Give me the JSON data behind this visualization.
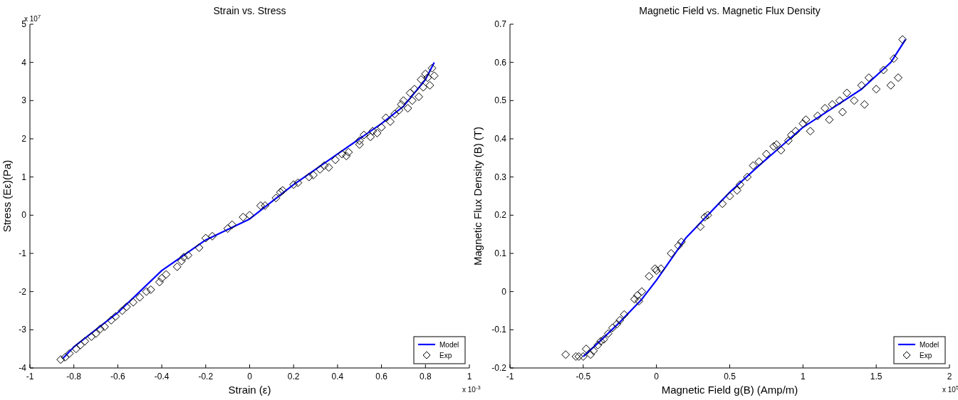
{
  "chart_data": [
    {
      "type": "scatter",
      "title": "Strain vs. Stress",
      "xlabel": "Strain (ε)",
      "ylabel": "Stress (Eε)(Pa)",
      "annotations": [
        "x 10$^{7}$",
        "x 10$^{-3}$"
      ],
      "xlim": [
        -1,
        1
      ],
      "xticks": [
        -1,
        -0.8,
        -0.6,
        -0.4,
        -0.2,
        0,
        0.2,
        0.4,
        0.6,
        0.8,
        1
      ],
      "ylim": [
        -4,
        5
      ],
      "yticks": [
        -4,
        -3,
        -2,
        -1,
        0,
        1,
        2,
        3,
        4,
        5
      ],
      "legend": "bottom right",
      "grid": false,
      "series": [
        {
          "name": "Model",
          "type": "line",
          "color": "#0000ff",
          "marker": "none",
          "line_style": "solid",
          "x": [
            -0.85,
            -0.8,
            -0.6,
            -0.4,
            -0.2,
            0,
            0.2,
            0.4,
            0.5,
            0.6,
            0.7,
            0.75,
            0.8,
            0.84
          ],
          "values": [
            -3.75,
            -3.45,
            -2.55,
            -1.45,
            -0.65,
            -0.1,
            0.8,
            1.6,
            2.0,
            2.4,
            2.85,
            3.2,
            3.55,
            4.0
          ]
        },
        {
          "name": "Exp",
          "color": "#000000",
          "marker": "diamond",
          "x": [
            -0.86,
            -0.84,
            -0.82,
            -0.79,
            -0.77,
            -0.75,
            -0.72,
            -0.7,
            -0.68,
            -0.66,
            -0.63,
            -0.61,
            -0.58,
            -0.56,
            -0.53,
            -0.5,
            -0.47,
            -0.45,
            -0.41,
            -0.4,
            -0.38,
            -0.33,
            -0.31,
            -0.3,
            -0.28,
            -0.23,
            -0.2,
            -0.17,
            -0.1,
            -0.08,
            -0.03,
            0,
            0.05,
            0.07,
            0.12,
            0.14,
            0.15,
            0.2,
            0.22,
            0.27,
            0.29,
            0.32,
            0.34,
            0.36,
            0.39,
            0.42,
            0.44,
            0.45,
            0.5,
            0.5,
            0.52,
            0.55,
            0.56,
            0.58,
            0.6,
            0.62,
            0.64,
            0.66,
            0.68,
            0.69,
            0.7,
            0.72,
            0.73,
            0.74,
            0.75,
            0.77,
            0.78,
            0.79,
            0.8,
            0.81,
            0.82,
            0.83,
            0.84
          ],
          "values": [
            -3.78,
            -3.72,
            -3.62,
            -3.5,
            -3.4,
            -3.3,
            -3.18,
            -3.1,
            -2.98,
            -2.92,
            -2.75,
            -2.65,
            -2.5,
            -2.4,
            -2.28,
            -2.15,
            -2.0,
            -1.95,
            -1.75,
            -1.65,
            -1.55,
            -1.35,
            -1.2,
            -1.1,
            -1.05,
            -0.85,
            -0.6,
            -0.55,
            -0.35,
            -0.25,
            -0.05,
            0,
            0.25,
            0.25,
            0.45,
            0.6,
            0.65,
            0.8,
            0.85,
            1.0,
            1.05,
            1.2,
            1.3,
            1.25,
            1.45,
            1.6,
            1.55,
            1.65,
            1.85,
            1.95,
            2.1,
            2.05,
            2.2,
            2.15,
            2.3,
            2.55,
            2.45,
            2.65,
            2.75,
            2.9,
            3.0,
            2.8,
            3.2,
            3.0,
            3.3,
            3.1,
            3.55,
            3.35,
            3.7,
            3.6,
            3.4,
            3.85,
            3.65
          ]
        }
      ]
    },
    {
      "type": "scatter",
      "title": "Magnetic Field vs. Magnetic Flux Density",
      "xlabel": "Magnetic Field g(B) (Amp/m)",
      "ylabel": "Magnetic Flux Density (B)  (T)",
      "annotations": [
        "x 10$^{5}$"
      ],
      "xlim": [
        -1,
        2
      ],
      "xticks": [
        -1,
        -0.5,
        0,
        0.5,
        1,
        1.5,
        2
      ],
      "ylim": [
        -0.2,
        0.7
      ],
      "yticks": [
        -0.2,
        -0.1,
        0,
        0.1,
        0.2,
        0.3,
        0.4,
        0.5,
        0.6,
        0.7
      ],
      "legend": "bottom right",
      "grid": false,
      "series": [
        {
          "name": "Model",
          "type": "line",
          "color": "#0000ff",
          "marker": "none",
          "line_style": "solid",
          "x": [
            -0.5,
            -0.4,
            -0.25,
            -0.1,
            0,
            0.2,
            0.35,
            0.5,
            0.7,
            0.85,
            1.0,
            1.2,
            1.4,
            1.6,
            1.7
          ],
          "values": [
            -0.17,
            -0.135,
            -0.08,
            -0.02,
            0.03,
            0.14,
            0.2,
            0.26,
            0.33,
            0.38,
            0.43,
            0.48,
            0.53,
            0.6,
            0.66
          ]
        },
        {
          "name": "Exp",
          "color": "#000000",
          "marker": "diamond",
          "x": [
            -0.62,
            -0.55,
            -0.53,
            -0.5,
            -0.48,
            -0.45,
            -0.43,
            -0.4,
            -0.38,
            -0.36,
            -0.33,
            -0.3,
            -0.27,
            -0.25,
            -0.22,
            -0.15,
            -0.13,
            -0.12,
            -0.1,
            -0.05,
            -0.01,
            0,
            0.03,
            0.1,
            0.15,
            0.17,
            0.3,
            0.33,
            0.35,
            0.45,
            0.5,
            0.55,
            0.57,
            0.62,
            0.66,
            0.7,
            0.75,
            0.8,
            0.82,
            0.85,
            0.9,
            0.92,
            0.95,
            1.0,
            1.02,
            1.05,
            1.1,
            1.15,
            1.18,
            1.2,
            1.25,
            1.27,
            1.3,
            1.35,
            1.4,
            1.42,
            1.45,
            1.5,
            1.55,
            1.6,
            1.62,
            1.65,
            1.68
          ],
          "values": [
            -0.165,
            -0.17,
            -0.17,
            -0.17,
            -0.15,
            -0.165,
            -0.155,
            -0.14,
            -0.13,
            -0.125,
            -0.11,
            -0.095,
            -0.085,
            -0.075,
            -0.06,
            -0.02,
            -0.01,
            -0.025,
            0.0,
            0.04,
            0.06,
            0.055,
            0.06,
            0.1,
            0.12,
            0.13,
            0.17,
            0.195,
            0.2,
            0.23,
            0.25,
            0.265,
            0.28,
            0.3,
            0.33,
            0.34,
            0.36,
            0.38,
            0.385,
            0.37,
            0.395,
            0.41,
            0.42,
            0.44,
            0.45,
            0.42,
            0.46,
            0.48,
            0.45,
            0.49,
            0.5,
            0.47,
            0.52,
            0.5,
            0.54,
            0.49,
            0.56,
            0.53,
            0.58,
            0.54,
            0.61,
            0.56,
            0.66
          ]
        }
      ]
    }
  ]
}
